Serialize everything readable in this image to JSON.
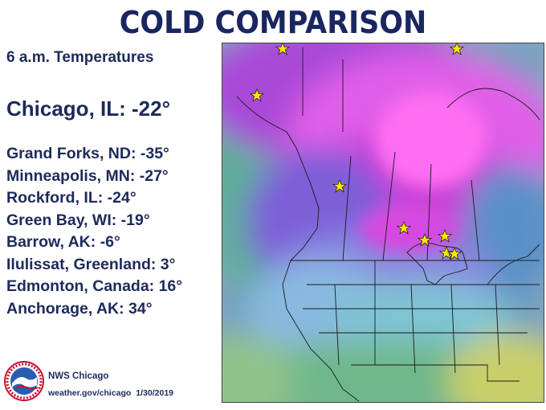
{
  "title": "COLD COMPARISON",
  "subtitle": "6 a.m. Temperatures",
  "featured": "Chicago, IL: -22°",
  "cities": [
    "Grand Forks, ND: -35°",
    "Minneapolis, MN: -27°",
    "Rockford, IL: -24°",
    "Green Bay, WI: -19°",
    "Barrow, AK:  -6°",
    "Ilulissat, Greenland: 3°",
    "Edmonton, Canada: 16°",
    "Anchorage, AK: 34°"
  ],
  "credit": {
    "org": "NWS Chicago",
    "website": "weather.gov/chicago",
    "date": "1/30/2019",
    "logo_text": "NATIONAL WEATHER SERVICE"
  },
  "map": {
    "type": "temperature-shaded-map",
    "region": "North America",
    "marker_icon": "star-icon",
    "marker_color": "#ffe600",
    "colors": {
      "coldest": "#ff66f0",
      "very_cold": "#c640e0",
      "cold": "#8a4fd6",
      "cool": "#8aa0e6",
      "mild": "#7cc8c0",
      "warm": "#7fbf6a",
      "hot": "#c9cf6a"
    }
  }
}
